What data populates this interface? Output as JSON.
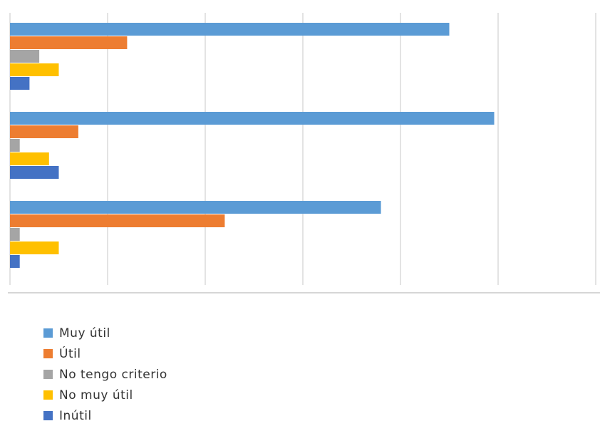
{
  "chart_data": {
    "type": "bar",
    "orientation": "horizontal",
    "categories": [
      "",
      "",
      ""
    ],
    "xlim": [
      0,
      60
    ],
    "grid": true,
    "legend_position": "bottom-left",
    "series": [
      {
        "name": "Muy útil",
        "color": "#5b9bd5",
        "values": [
          45,
          49.6,
          38
        ]
      },
      {
        "name": "Útil",
        "color": "#ed7d31",
        "values": [
          12,
          7,
          22
        ]
      },
      {
        "name": "No tengo criterio",
        "color": "#a5a5a5",
        "values": [
          3,
          1,
          1
        ]
      },
      {
        "name": "No muy útil",
        "color": "#ffc000",
        "values": [
          5,
          4,
          5
        ]
      },
      {
        "name": "Inútil",
        "color": "#4472c4",
        "values": [
          2,
          5,
          1
        ]
      }
    ]
  }
}
